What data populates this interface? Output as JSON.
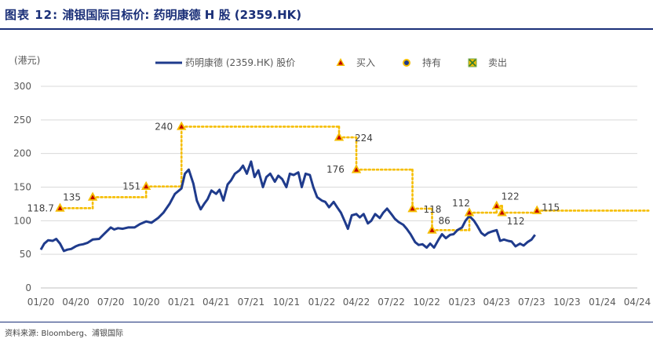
{
  "header": {
    "figure_label": "图表 12:",
    "title": "浦银国际目标价: 药明康德 H 股 (2359.HK)"
  },
  "source": "资料来源: Bloomberg、浦银国际",
  "colors": {
    "price_line": "#1f3b8c",
    "target_line": "#f5bd00",
    "buy_marker": "#f5bd00",
    "buy_marker_inner": "#c00000",
    "header": "#1a2f78"
  },
  "chart_data": {
    "type": "line",
    "title": "",
    "ylabel": "(港元)",
    "xlabel": "",
    "ylim": [
      0,
      300
    ],
    "yticks": [
      0,
      50,
      100,
      150,
      200,
      250,
      300
    ],
    "xticks": [
      "01/20",
      "04/20",
      "07/20",
      "10/20",
      "01/21",
      "04/21",
      "07/21",
      "10/21",
      "01/22",
      "04/22",
      "07/22",
      "10/22",
      "01/23",
      "04/23",
      "07/23",
      "10/23",
      "01/24",
      "04/24"
    ],
    "grid": "horizontal",
    "legend_position": "top",
    "legend": [
      {
        "key": "price",
        "label": "药明康德 (2359.HK) 股价",
        "icon": "line"
      },
      {
        "key": "buy",
        "label": "买入",
        "icon": "triangle-marker"
      },
      {
        "key": "hold",
        "label": "持有",
        "icon": "circle-marker"
      },
      {
        "key": "sell",
        "label": "卖出",
        "icon": "x-square-marker"
      }
    ],
    "series": [
      {
        "name": "药明康德 (2359.HK) 股价",
        "points": [
          [
            "2020-01-01",
            57
          ],
          [
            "2020-01-10",
            66
          ],
          [
            "2020-01-20",
            71
          ],
          [
            "2020-02-01",
            70
          ],
          [
            "2020-02-10",
            73
          ],
          [
            "2020-02-20",
            66
          ],
          [
            "2020-03-01",
            55
          ],
          [
            "2020-03-10",
            57
          ],
          [
            "2020-03-20",
            58
          ],
          [
            "2020-04-01",
            62
          ],
          [
            "2020-04-10",
            64
          ],
          [
            "2020-04-20",
            65
          ],
          [
            "2020-05-01",
            67
          ],
          [
            "2020-05-15",
            72
          ],
          [
            "2020-06-01",
            73
          ],
          [
            "2020-06-15",
            81
          ],
          [
            "2020-07-01",
            90
          ],
          [
            "2020-07-10",
            87
          ],
          [
            "2020-07-20",
            89
          ],
          [
            "2020-08-01",
            88
          ],
          [
            "2020-08-15",
            90
          ],
          [
            "2020-09-01",
            90
          ],
          [
            "2020-09-15",
            95
          ],
          [
            "2020-10-01",
            99
          ],
          [
            "2020-10-15",
            97
          ],
          [
            "2020-11-01",
            104
          ],
          [
            "2020-11-15",
            112
          ],
          [
            "2020-12-01",
            125
          ],
          [
            "2020-12-15",
            140
          ],
          [
            "2021-01-01",
            148
          ],
          [
            "2021-01-10",
            170
          ],
          [
            "2021-01-20",
            176
          ],
          [
            "2021-02-01",
            155
          ],
          [
            "2021-02-10",
            130
          ],
          [
            "2021-02-20",
            117
          ],
          [
            "2021-03-01",
            125
          ],
          [
            "2021-03-10",
            132
          ],
          [
            "2021-03-20",
            145
          ],
          [
            "2021-04-01",
            140
          ],
          [
            "2021-04-10",
            146
          ],
          [
            "2021-04-20",
            130
          ],
          [
            "2021-05-01",
            154
          ],
          [
            "2021-05-10",
            160
          ],
          [
            "2021-05-20",
            170
          ],
          [
            "2021-06-01",
            175
          ],
          [
            "2021-06-10",
            182
          ],
          [
            "2021-06-20",
            170
          ],
          [
            "2021-07-01",
            188
          ],
          [
            "2021-07-10",
            165
          ],
          [
            "2021-07-20",
            175
          ],
          [
            "2021-08-01",
            150
          ],
          [
            "2021-08-10",
            165
          ],
          [
            "2021-08-20",
            170
          ],
          [
            "2021-09-01",
            158
          ],
          [
            "2021-09-10",
            167
          ],
          [
            "2021-09-20",
            162
          ],
          [
            "2021-10-01",
            150
          ],
          [
            "2021-10-10",
            170
          ],
          [
            "2021-10-20",
            168
          ],
          [
            "2021-11-01",
            172
          ],
          [
            "2021-11-10",
            150
          ],
          [
            "2021-11-20",
            170
          ],
          [
            "2021-12-01",
            168
          ],
          [
            "2021-12-10",
            150
          ],
          [
            "2021-12-20",
            135
          ],
          [
            "2022-01-01",
            130
          ],
          [
            "2022-01-10",
            128
          ],
          [
            "2022-01-20",
            120
          ],
          [
            "2022-02-01",
            128
          ],
          [
            "2022-02-10",
            120
          ],
          [
            "2022-02-20",
            112
          ],
          [
            "2022-03-01",
            100
          ],
          [
            "2022-03-10",
            88
          ],
          [
            "2022-03-20",
            108
          ],
          [
            "2022-04-01",
            110
          ],
          [
            "2022-04-10",
            105
          ],
          [
            "2022-04-20",
            110
          ],
          [
            "2022-05-01",
            96
          ],
          [
            "2022-05-10",
            100
          ],
          [
            "2022-05-20",
            110
          ],
          [
            "2022-06-01",
            104
          ],
          [
            "2022-06-10",
            112
          ],
          [
            "2022-06-20",
            118
          ],
          [
            "2022-07-01",
            110
          ],
          [
            "2022-07-10",
            103
          ],
          [
            "2022-07-20",
            98
          ],
          [
            "2022-08-01",
            94
          ],
          [
            "2022-08-10",
            88
          ],
          [
            "2022-08-20",
            80
          ],
          [
            "2022-09-01",
            68
          ],
          [
            "2022-09-10",
            64
          ],
          [
            "2022-09-20",
            65
          ],
          [
            "2022-10-01",
            60
          ],
          [
            "2022-10-10",
            66
          ],
          [
            "2022-10-20",
            60
          ],
          [
            "2022-11-01",
            72
          ],
          [
            "2022-11-10",
            80
          ],
          [
            "2022-11-20",
            74
          ],
          [
            "2022-12-01",
            79
          ],
          [
            "2022-12-10",
            80
          ],
          [
            "2022-12-20",
            86
          ],
          [
            "2023-01-01",
            90
          ],
          [
            "2023-01-10",
            100
          ],
          [
            "2023-01-20",
            107
          ],
          [
            "2023-02-01",
            100
          ],
          [
            "2023-02-10",
            92
          ],
          [
            "2023-02-20",
            82
          ],
          [
            "2023-03-01",
            78
          ],
          [
            "2023-03-10",
            82
          ],
          [
            "2023-03-20",
            84
          ],
          [
            "2023-04-01",
            86
          ],
          [
            "2023-04-10",
            70
          ],
          [
            "2023-04-20",
            72
          ],
          [
            "2023-05-01",
            70
          ],
          [
            "2023-05-10",
            69
          ],
          [
            "2023-05-20",
            62
          ],
          [
            "2023-06-01",
            66
          ],
          [
            "2023-06-10",
            63
          ],
          [
            "2023-06-20",
            68
          ],
          [
            "2023-07-01",
            72
          ],
          [
            "2023-07-10",
            79
          ]
        ]
      }
    ],
    "ratings": [
      {
        "date": "2020-02-20",
        "target": 118.7,
        "rating": "买入",
        "label": "118.7",
        "until": "2020-05-15"
      },
      {
        "date": "2020-05-15",
        "target": 135,
        "rating": "买入",
        "label": "135",
        "until": "2020-10-01"
      },
      {
        "date": "2020-10-01",
        "target": 151,
        "rating": "买入",
        "label": "151",
        "until": "2021-01-01"
      },
      {
        "date": "2021-01-01",
        "target": 240,
        "rating": "买入",
        "label": "240",
        "until": "2022-02-15"
      },
      {
        "date": "2022-02-15",
        "target": 224,
        "rating": "买入",
        "label": "224",
        "until": "2022-04-01"
      },
      {
        "date": "2022-04-01",
        "target": 176,
        "rating": "买入",
        "label": "176",
        "until": "2022-08-25"
      },
      {
        "date": "2022-08-25",
        "target": 118,
        "rating": "买入",
        "label": "118",
        "until": "2022-10-15"
      },
      {
        "date": "2022-10-15",
        "target": 86,
        "rating": "买入",
        "label": "86",
        "until": "2023-01-20"
      },
      {
        "date": "2023-01-20",
        "target": 112,
        "rating": "买入",
        "label": "112",
        "until": "2023-04-01"
      },
      {
        "date": "2023-04-01",
        "target": 122,
        "rating": "买入",
        "label": "122",
        "until": "2023-04-15"
      },
      {
        "date": "2023-04-15",
        "target": 112,
        "rating": "买入",
        "label": "112",
        "until": "2023-07-15"
      },
      {
        "date": "2023-07-15",
        "target": 115,
        "rating": "买入",
        "label": "115",
        "until": "2024-04-30"
      }
    ]
  }
}
